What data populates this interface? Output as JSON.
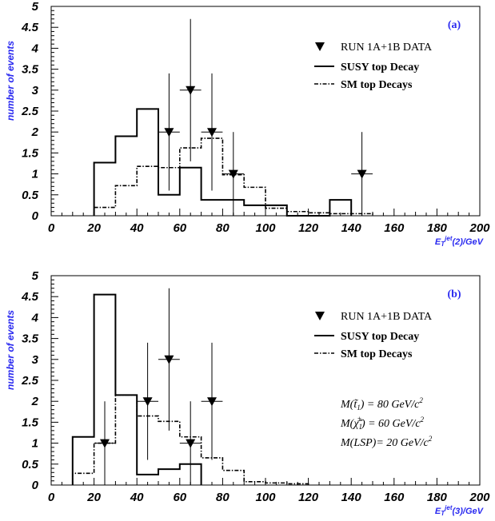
{
  "chart_data": [
    {
      "type": "histogram",
      "panel_label": "(a)",
      "ylabel": "number of events",
      "xlabel_main": "E",
      "xlabel_sub": "T",
      "xlabel_sup": "jet",
      "xlabel_tail": "(2)/GeV",
      "xlim": [
        0,
        200
      ],
      "ylim": [
        0,
        5
      ],
      "x_ticks": [
        "0",
        "20",
        "40",
        "60",
        "80",
        "100",
        "120",
        "140",
        "160",
        "180",
        "200"
      ],
      "y_ticks": [
        "0",
        "0.5",
        "1",
        "1.5",
        "2",
        "2.5",
        "3",
        "3.5",
        "4",
        "4.5",
        "5"
      ],
      "legend": {
        "data": "RUN 1A+1B DATA",
        "susy": "SUSY top Decay",
        "sm": "SM top Decays"
      },
      "susy_hist": {
        "edges": [
          20,
          30,
          40,
          50,
          60,
          70,
          80,
          90,
          100,
          110,
          120,
          130,
          140
        ],
        "values": [
          1.27,
          1.9,
          2.55,
          0.5,
          1.15,
          0.38,
          0.38,
          0.25,
          0.25,
          0,
          0,
          0.38
        ]
      },
      "sm_hist": {
        "edges": [
          20,
          30,
          40,
          50,
          60,
          70,
          80,
          90,
          100,
          110,
          120,
          130,
          140,
          150
        ],
        "values": [
          0.2,
          0.72,
          1.18,
          1.15,
          1.62,
          1.85,
          0.98,
          0.68,
          0.18,
          0.1,
          0.07,
          0.05,
          0.05
        ]
      },
      "data_points": [
        {
          "x": 55,
          "y": 2,
          "xerr": 5,
          "ylow": 0.6,
          "yhigh": 3.4
        },
        {
          "x": 65,
          "y": 3,
          "xerr": 5,
          "ylow": 1.3,
          "yhigh": 4.7
        },
        {
          "x": 75,
          "y": 2,
          "xerr": 5,
          "ylow": 0.6,
          "yhigh": 3.4
        },
        {
          "x": 85,
          "y": 1,
          "xerr": 5,
          "ylow": 0,
          "yhigh": 2.0
        },
        {
          "x": 145,
          "y": 1,
          "xerr": 5,
          "ylow": 0,
          "yhigh": 2.0
        }
      ],
      "annotations": []
    },
    {
      "type": "histogram",
      "panel_label": "(b)",
      "ylabel": "number of events",
      "xlabel_main": "E",
      "xlabel_sub": "T",
      "xlabel_sup": "jet",
      "xlabel_tail": "(3)/GeV",
      "xlim": [
        0,
        200
      ],
      "ylim": [
        0,
        5
      ],
      "x_ticks": [
        "0",
        "20",
        "40",
        "60",
        "80",
        "100",
        "120",
        "140",
        "160",
        "180",
        "200"
      ],
      "y_ticks": [
        "0",
        "0.5",
        "1",
        "1.5",
        "2",
        "2.5",
        "3",
        "3.5",
        "4",
        "4.5",
        "5"
      ],
      "legend": {
        "data": "RUN 1A+1B DATA",
        "susy": "SUSY top Decay",
        "sm": "SM top Decays"
      },
      "susy_hist": {
        "edges": [
          10,
          20,
          30,
          40,
          50,
          60,
          70
        ],
        "values": [
          1.15,
          4.55,
          2.15,
          0.25,
          0.38,
          0.5
        ]
      },
      "sm_hist": {
        "edges": [
          10,
          20,
          30,
          40,
          50,
          60,
          70,
          80,
          90,
          100,
          110,
          120
        ],
        "values": [
          0.28,
          1.0,
          2.15,
          1.65,
          1.52,
          1.15,
          0.65,
          0.35,
          0.08,
          0.05,
          0.03
        ]
      },
      "data_points": [
        {
          "x": 25,
          "y": 1,
          "xerr": 5,
          "ylow": 0,
          "yhigh": 2.0
        },
        {
          "x": 45,
          "y": 2,
          "xerr": 5,
          "ylow": 0.6,
          "yhigh": 3.4
        },
        {
          "x": 55,
          "y": 3,
          "xerr": 5,
          "ylow": 1.3,
          "yhigh": 4.7
        },
        {
          "x": 65,
          "y": 1,
          "xerr": 5,
          "ylow": 0,
          "yhigh": 2.0
        },
        {
          "x": 75,
          "y": 2,
          "xerr": 5,
          "ylow": 0.6,
          "yhigh": 3.4
        }
      ],
      "annotations": [
        {
          "lhs": "M(t̃",
          "sub": "1",
          "rhs": ")    = 80 GeV/c",
          "sup": "2"
        },
        {
          "lhs": "M(χ̃",
          "sub": "1",
          "supl": "±",
          "rhs": ")  = 60 GeV/c",
          "sup": "2"
        },
        {
          "lhs": "M(LSP)= 20 GeV/c",
          "sub": "",
          "rhs": "",
          "sup": "2"
        }
      ]
    }
  ]
}
